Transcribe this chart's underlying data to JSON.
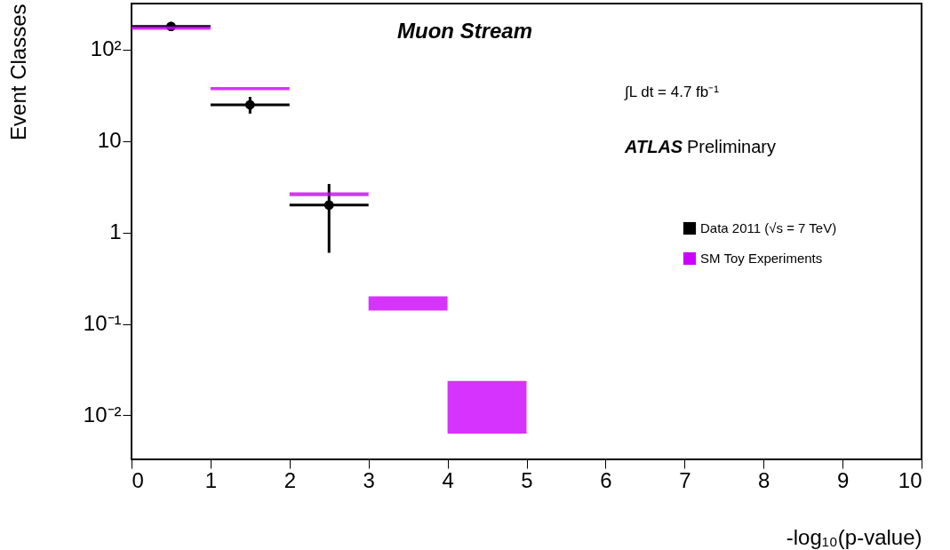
{
  "chart_data": {
    "type": "scatter",
    "xlabel": "-log₁₀(p-value)",
    "ylabel": "Event Classes",
    "annotations": [
      "Muon Stream",
      "∫L dt = 4.7 fb⁻¹",
      "ATLAS",
      "Preliminary"
    ],
    "xlim": [
      0,
      10
    ],
    "xticks": [
      0,
      1,
      2,
      3,
      4,
      5,
      6,
      7,
      8,
      9,
      10
    ],
    "ylim": [
      0.0033,
      320
    ],
    "yticks": [
      {
        "value": 0.01,
        "label": "10⁻²"
      },
      {
        "value": 0.1,
        "label": "10⁻¹"
      },
      1,
      10,
      {
        "value": 100,
        "label": "10²"
      }
    ],
    "log": true,
    "grid": false,
    "legend": "right",
    "marker": "circle",
    "series": [
      {
        "name": "Data 2011 (√s = 7 TeV)",
        "color": "#000000",
        "x": [
          0.5,
          1.5,
          2.5
        ],
        "values": [
          180,
          25,
          2.0
        ],
        "xerrors": [
          0.5,
          0.5,
          0.5
        ],
        "errors": [
          null,
          [
            20,
            30.5
          ],
          [
            0.6,
            3.4
          ]
        ]
      },
      {
        "name": "SM Toy Experiments",
        "type": "bar",
        "color": "#cc00ff",
        "x": [
          0.5,
          1.5,
          2.5,
          3.5,
          4.5
        ],
        "base": [
          165,
          36,
          2.5,
          0.14,
          0.0063
        ],
        "values": [
          15,
          3,
          0.25,
          0.06,
          0.0175
        ]
      }
    ]
  }
}
